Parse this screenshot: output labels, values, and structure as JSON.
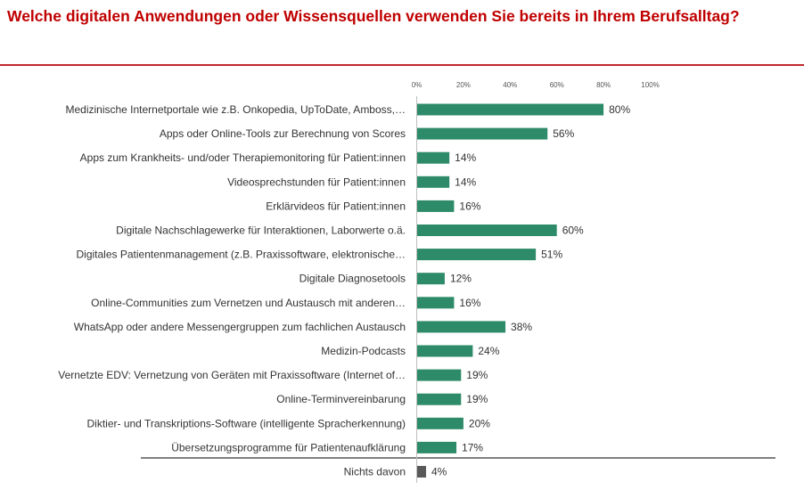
{
  "header": {
    "title": "Welche digitalen Anwendungen oder Wissensquellen verwenden Sie bereits in Ihrem Berufsalltag?"
  },
  "colors": {
    "title": "#c00000",
    "rule": "#c0282d",
    "bar": "#2e8b6a",
    "bar_none": "#595959"
  },
  "chart_data": {
    "type": "bar",
    "orientation": "horizontal",
    "categories": [
      "Medizinische Internetportale wie z.B. Onkopedia, UpToDate, Amboss,…",
      "Apps oder Online-Tools zur Berechnung von Scores",
      "Apps zum Krankheits- und/oder Therapiemonitoring für Patient:innen",
      "Videosprechstunden für Patient:innen",
      "Erklärvideos für Patient:innen",
      "Digitale Nachschlagewerke für Interaktionen, Laborwerte o.ä.",
      "Digitales Patientenmanagement (z.B. Praxissoftware, elektronische…",
      "Digitale Diagnosetools",
      "Online-Communities zum Vernetzen und Austausch mit anderen…",
      "WhatsApp oder andere Messengergruppen zum fachlichen Austausch",
      "Medizin-Podcasts",
      "Vernetzte EDV: Vernetzung von Geräten mit Praxissoftware (Internet of…",
      "Online-Terminvereinbarung",
      "Diktier- und Transkriptions-Software (intelligente Spracherkennung)",
      "Übersetzungsprogramme für Patientenaufklärung",
      "Nichts davon"
    ],
    "values": [
      80,
      56,
      14,
      14,
      16,
      60,
      51,
      12,
      16,
      38,
      24,
      19,
      19,
      20,
      17,
      4
    ],
    "value_labels": [
      "80%",
      "56%",
      "14%",
      "14%",
      "16%",
      "60%",
      "51%",
      "12%",
      "16%",
      "38%",
      "24%",
      "19%",
      "19%",
      "20%",
      "17%",
      "4%"
    ],
    "xlim": [
      0,
      100
    ],
    "xticks": [
      "0%",
      "20%",
      "40%",
      "60%",
      "80%",
      "100%"
    ],
    "grid": false,
    "legend": "none"
  }
}
